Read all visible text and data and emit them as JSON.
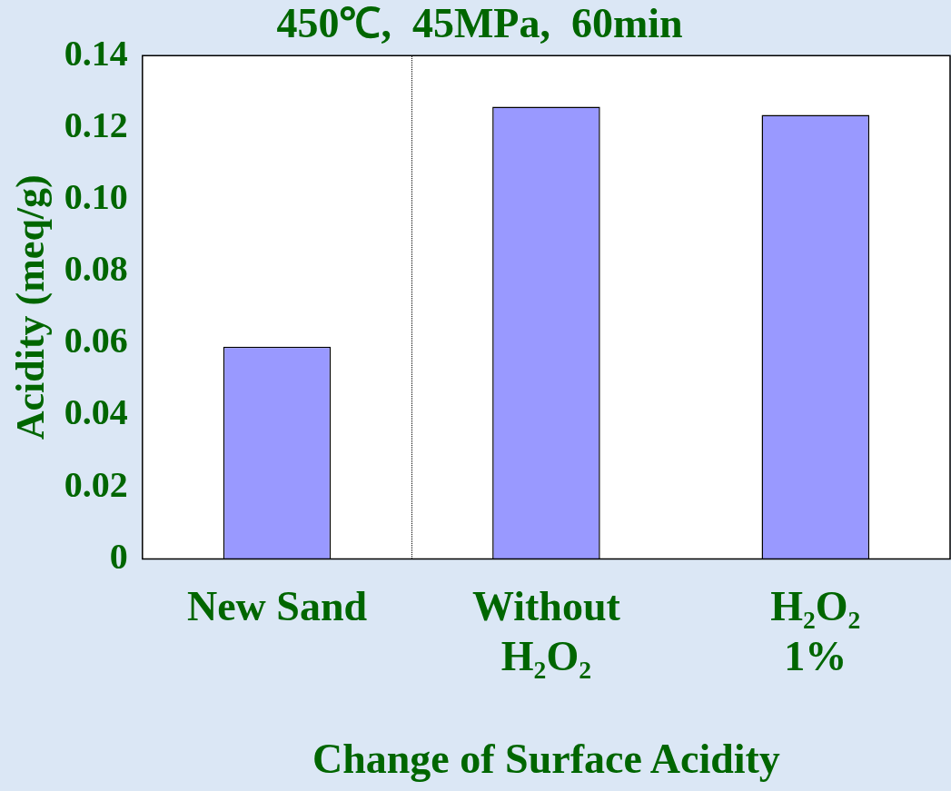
{
  "chart_data": {
    "type": "bar",
    "title": "450℃,  45MPa,  60min",
    "xlabel": "Change of Surface Acidity",
    "ylabel": "Acidity (meq/g)",
    "categories": [
      "New Sand",
      "Without\nH₂O₂",
      "H₂O₂\n1%"
    ],
    "values": [
      0.059,
      0.1258,
      0.1235
    ],
    "color": "#9999ff",
    "ylim": [
      0,
      0.14
    ],
    "yticks": [
      0,
      0.02,
      0.04,
      0.06,
      0.08,
      {
        "value": 0.1,
        "label": "0.10"
      },
      0.12,
      0.14
    ],
    "grid": false,
    "legend": false
  }
}
